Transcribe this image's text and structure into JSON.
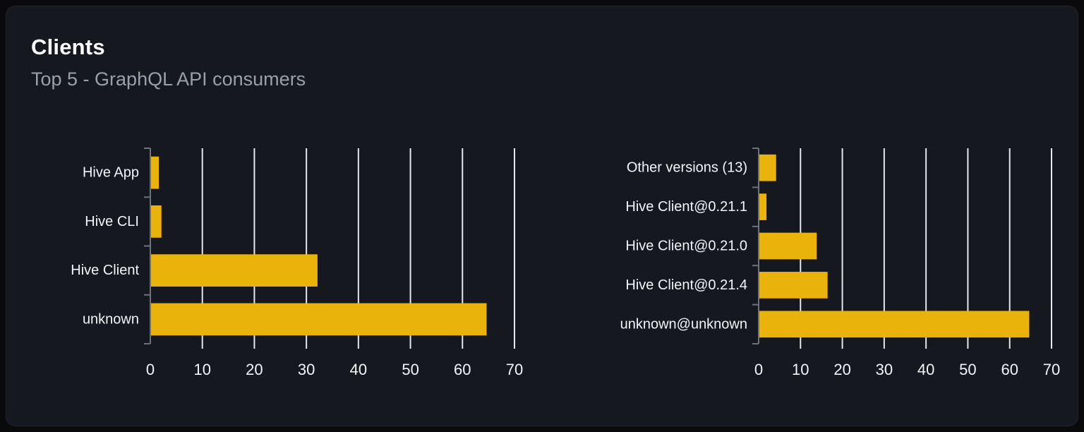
{
  "card": {
    "title": "Clients",
    "subtitle": "Top 5 - GraphQL API consumers"
  },
  "colors": {
    "page_bg": "#0a0a0c",
    "card_bg": "#15181e",
    "bar": "#eab30b",
    "gridline": "#e4e8f0",
    "axis": "#6d727c",
    "category_label": "#f4f5f7",
    "tick_label": "#f4f5f7",
    "title": "#ffffff",
    "subtitle": "#9aa0ab"
  },
  "chart_data": [
    {
      "type": "bar",
      "orientation": "horizontal",
      "title": "",
      "xlabel": "",
      "ylabel": "",
      "categories": [
        "Hive App",
        "Hive CLI",
        "Hive Client",
        "unknown"
      ],
      "values": [
        1.5,
        2,
        32,
        64.5
      ],
      "xlim": [
        0,
        70
      ],
      "xticks": [
        0,
        10,
        20,
        30,
        40,
        50,
        60,
        70
      ],
      "grid": true,
      "legend": false
    },
    {
      "type": "bar",
      "orientation": "horizontal",
      "title": "",
      "xlabel": "",
      "ylabel": "",
      "categories": [
        "Other versions (13)",
        "Hive Client@0.21.1",
        "Hive Client@0.21.0",
        "Hive Client@0.21.4",
        "unknown@unknown"
      ],
      "values": [
        4,
        1.7,
        13.7,
        16.3,
        64.5
      ],
      "xlim": [
        0,
        70
      ],
      "xticks": [
        0,
        10,
        20,
        30,
        40,
        50,
        60,
        70
      ],
      "grid": true,
      "legend": false
    }
  ]
}
